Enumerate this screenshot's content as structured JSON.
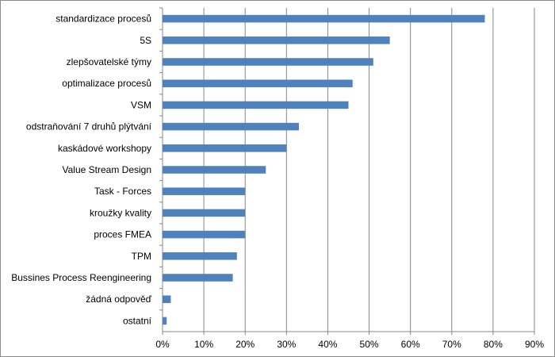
{
  "chart_data": {
    "type": "bar",
    "orientation": "horizontal",
    "title": "",
    "xlabel": "",
    "ylabel": "",
    "categories": [
      "standardizace procesů",
      "5S",
      "zlepšovatelské týmy",
      "optimalizace procesů",
      "VSM",
      "odstraňování 7 druhů plýtvání",
      "kaskádové workshopy",
      "Value Stream Design",
      "Task - Forces",
      "kroužky kvality",
      "proces FMEA",
      "TPM",
      "Bussines Process Reengineering",
      "žádná odpověď",
      "ostatní"
    ],
    "values": [
      78,
      55,
      51,
      46,
      45,
      33,
      30,
      25,
      20,
      20,
      20,
      18,
      17,
      2,
      1
    ],
    "xlim": [
      0,
      90
    ],
    "x_ticks": [
      "0%",
      "10%",
      "20%",
      "30%",
      "40%",
      "50%",
      "60%",
      "70%",
      "80%",
      "90%"
    ],
    "grid": "vertical",
    "legend": "none",
    "bar_color": "#4f81bd",
    "grid_color": "#878787"
  }
}
